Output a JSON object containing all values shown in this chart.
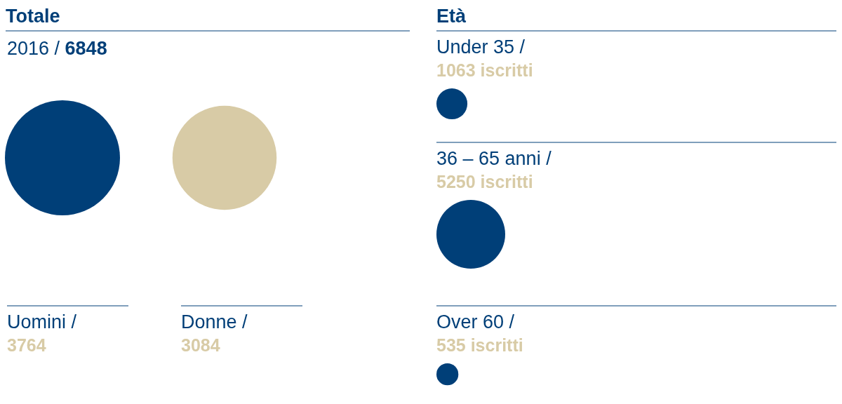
{
  "chart_data": [
    {
      "type": "other",
      "title": "Totale",
      "subtitle": "2016 / 6848",
      "categories": [
        "Uomini /",
        "Donne /"
      ],
      "values": [
        3764,
        3084
      ],
      "colors": [
        "#003f78",
        "#d8cba6"
      ],
      "value_labels": [
        "3764",
        "3084"
      ]
    },
    {
      "type": "other",
      "title": "Età",
      "categories": [
        "Under 35 /",
        "36 – 65 anni /",
        "Over 60 /"
      ],
      "values": [
        1063,
        5250,
        535
      ],
      "colors": [
        "#003f78",
        "#003f78",
        "#003f78"
      ],
      "value_labels": [
        "1063 iscritti",
        "5250 iscritti",
        "535 iscritti"
      ]
    }
  ]
}
